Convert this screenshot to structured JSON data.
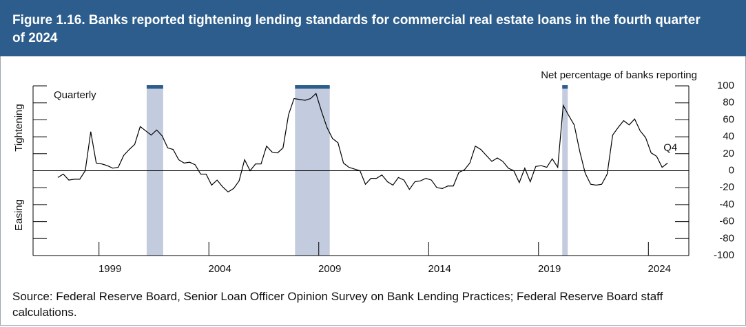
{
  "chart_data": {
    "type": "line",
    "title": "Figure 1.16. Banks reported tightening lending standards for commercial real estate loans in the fourth quarter of 2024",
    "source": "Source: Federal Reserve Board, Senior Loan Officer Opinion Survey on Bank Lending Practices; Federal Reserve Board staff calculations.",
    "axis_note": "Net percentage of banks reporting",
    "frequency": "Quarterly",
    "annotation": "Q4",
    "upper_label": "Tightening",
    "lower_label": "Easing",
    "x": [
      1997.125,
      1997.375,
      1997.625,
      1997.875,
      1998.125,
      1998.375,
      1998.625,
      1998.875,
      1999.125,
      1999.375,
      1999.625,
      1999.875,
      2000.125,
      2000.375,
      2000.625,
      2000.875,
      2001.125,
      2001.375,
      2001.625,
      2001.875,
      2002.125,
      2002.375,
      2002.625,
      2002.875,
      2003.125,
      2003.375,
      2003.625,
      2003.875,
      2004.125,
      2004.375,
      2004.625,
      2004.875,
      2005.125,
      2005.375,
      2005.625,
      2005.875,
      2006.125,
      2006.375,
      2006.625,
      2006.875,
      2007.125,
      2007.375,
      2007.625,
      2007.875,
      2008.125,
      2008.375,
      2008.625,
      2008.875,
      2009.125,
      2009.375,
      2009.625,
      2009.875,
      2010.125,
      2010.375,
      2010.625,
      2010.875,
      2011.125,
      2011.375,
      2011.625,
      2011.875,
      2012.125,
      2012.375,
      2012.625,
      2012.875,
      2013.125,
      2013.375,
      2013.625,
      2013.875,
      2014.125,
      2014.375,
      2014.625,
      2014.875,
      2015.125,
      2015.375,
      2015.625,
      2015.875,
      2016.125,
      2016.375,
      2016.625,
      2016.875,
      2017.125,
      2017.375,
      2017.625,
      2017.875,
      2018.125,
      2018.375,
      2018.625,
      2018.875,
      2019.125,
      2019.375,
      2019.625,
      2019.875,
      2020.125,
      2020.375,
      2020.625,
      2020.875,
      2021.125,
      2021.375,
      2021.625,
      2021.875,
      2022.125,
      2022.375,
      2022.625,
      2022.875,
      2023.125,
      2023.375,
      2023.625,
      2023.875,
      2024.125,
      2024.375,
      2024.625,
      2024.875
    ],
    "series": [
      {
        "color": "#000000",
        "values": [
          -8,
          -4,
          -11,
          -10,
          -10,
          0,
          46,
          9,
          8,
          6,
          3,
          4,
          18,
          25,
          31,
          52,
          47,
          42,
          48,
          41,
          27,
          25,
          13,
          9,
          10,
          7,
          -4,
          -4,
          -17,
          -11,
          -19,
          -25,
          -21,
          -12,
          13,
          0,
          8,
          8,
          29,
          22,
          21,
          27,
          66,
          85,
          84,
          83,
          85,
          91,
          70,
          51,
          38,
          33,
          9,
          4,
          2,
          0,
          -16,
          -9,
          -9,
          -5,
          -13,
          -17,
          -8,
          -11,
          -22,
          -13,
          -12,
          -9,
          -11,
          -20,
          -21,
          -18,
          -18,
          -2,
          1,
          9,
          29,
          25,
          18,
          11,
          15,
          11,
          3,
          0,
          -14,
          3,
          -13,
          5,
          6,
          4,
          14,
          4,
          77,
          65,
          54,
          23,
          -3,
          -16,
          -17,
          -16,
          -4,
          42,
          51,
          59,
          54,
          61,
          47,
          39,
          21,
          17,
          4,
          9
        ]
      }
    ],
    "xlim": [
      1996,
      2025.84
    ],
    "ylim": [
      -100,
      100
    ],
    "xticks": [
      1999,
      2004,
      2009,
      2014,
      2019,
      2024
    ],
    "yticks": [
      -100,
      -80,
      -60,
      -40,
      -20,
      0,
      20,
      40,
      60,
      80,
      100
    ],
    "zero_line": true,
    "shaded_periods": [
      [
        2001.17,
        2001.92
      ],
      [
        2007.92,
        2009.5
      ],
      [
        2020.08,
        2020.33
      ]
    ],
    "shade_color": "#c3cbdf",
    "shade_top_color": "#2c5d8c"
  }
}
